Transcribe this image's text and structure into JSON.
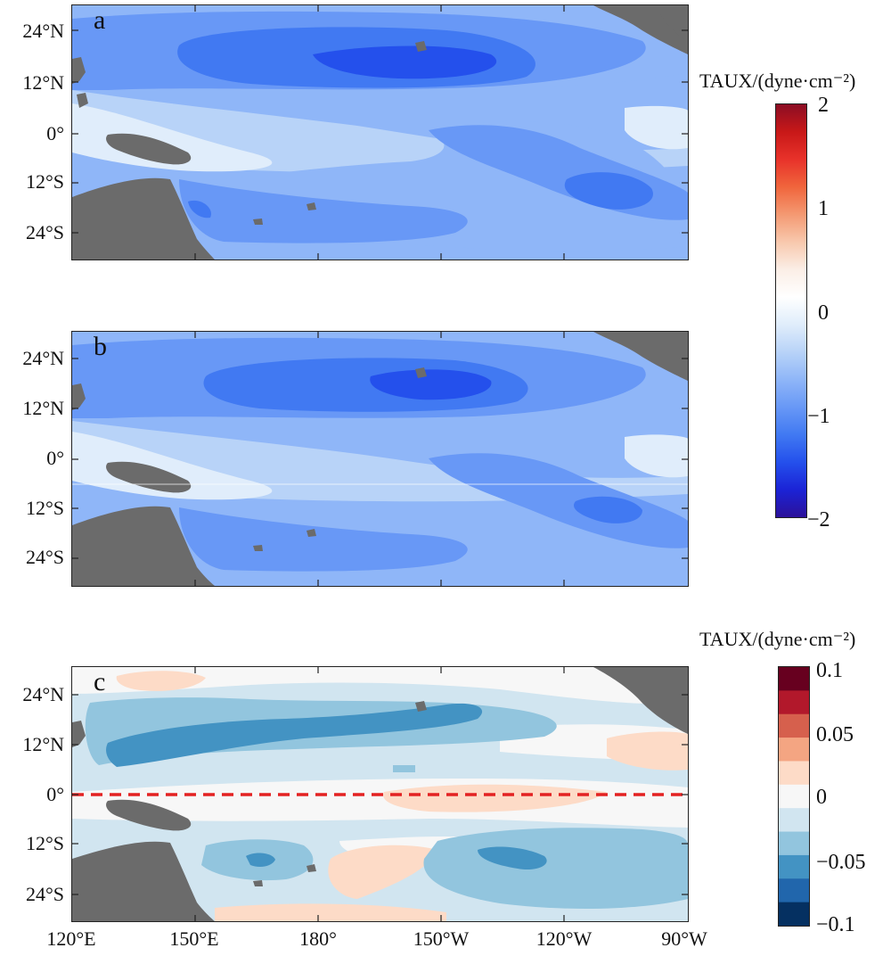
{
  "panels": [
    {
      "label": "a"
    },
    {
      "label": "b"
    },
    {
      "label": "c"
    }
  ],
  "lat_labels": [
    "24°N",
    "12°N",
    "0°",
    "12°S",
    "24°S"
  ],
  "lon_labels": [
    "120°E",
    "150°E",
    "180°",
    "150°W",
    "120°W",
    "90°W"
  ],
  "colorbar_top": {
    "title": "TAUX/(dyne·cm⁻²)",
    "ticks": [
      "2",
      "1",
      "0",
      "−1",
      "−2"
    ],
    "range": [
      -2,
      2
    ],
    "colors": [
      "#8b0d24",
      "#c81818",
      "#e8322a",
      "#f0653c",
      "#f49972",
      "#f8c8ad",
      "#fbeee6",
      "#ffffff",
      "#e0edfb",
      "#b8d3f8",
      "#8fb6f8",
      "#6898f6",
      "#4179f2",
      "#2450ec",
      "#1b23d6",
      "#2c1199"
    ]
  },
  "colorbar_bottom": {
    "title": "TAUX/(dyne·cm⁻²)",
    "ticks": [
      "0.1",
      "0.05",
      "0",
      "−0.05",
      "−0.1"
    ],
    "range": [
      -0.1,
      0.1
    ],
    "colors": [
      "#67001f",
      "#b2182b",
      "#d6604d",
      "#f4a582",
      "#fddbc7",
      "#f7f7f7",
      "#d1e5f0",
      "#92c5de",
      "#4393c3",
      "#2166ac",
      "#053061"
    ]
  },
  "equator_line_color": "#e32222",
  "land_color": "#6b6b6b"
}
